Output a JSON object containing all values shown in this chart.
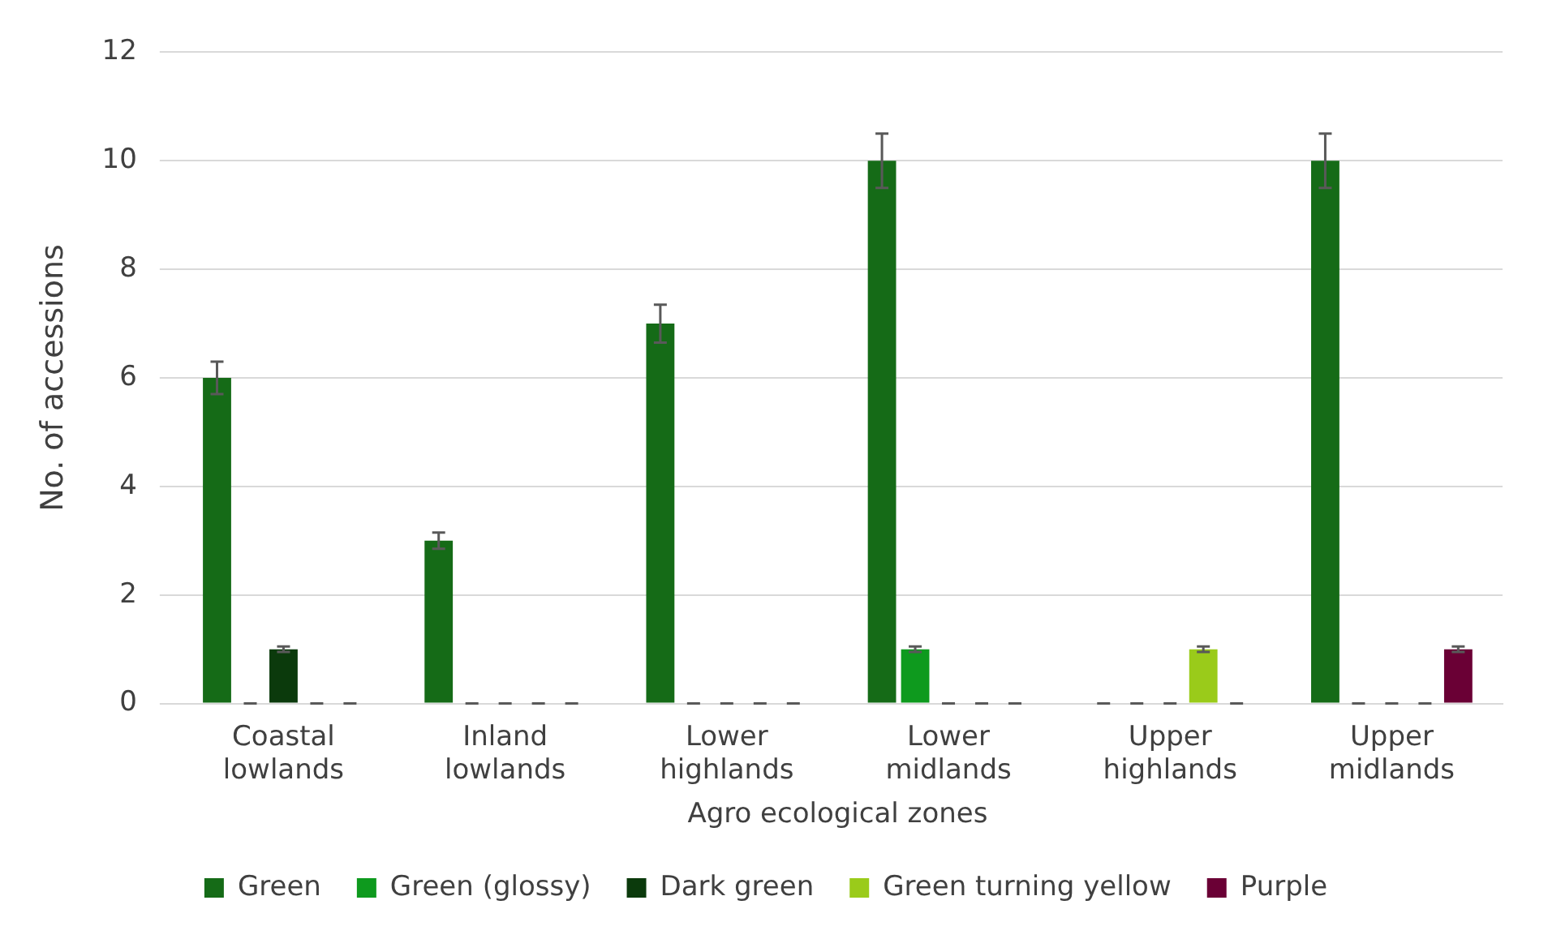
{
  "chart_data": {
    "type": "bar",
    "xlabel": "Agro ecological zones",
    "ylabel": "No. of accessions",
    "categories": [
      "Coastal lowlands",
      "Inland lowlands",
      "Lower highlands",
      "Lower midlands",
      "Upper highlands",
      "Upper midlands"
    ],
    "series": [
      {
        "name": "Green",
        "color": "#156b17",
        "values": [
          6,
          3,
          7,
          10,
          0,
          10
        ],
        "errors": [
          0.3,
          0.15,
          0.35,
          0.5,
          0,
          0.5
        ]
      },
      {
        "name": "Green (glossy)",
        "color": "#0e9a1e",
        "values": [
          0,
          0,
          0,
          1,
          0,
          0
        ],
        "errors": [
          0,
          0,
          0,
          0.05,
          0,
          0
        ]
      },
      {
        "name": "Dark green",
        "color": "#0b3a0c",
        "values": [
          1,
          0,
          0,
          0,
          0,
          0
        ],
        "errors": [
          0.05,
          0,
          0,
          0,
          0,
          0
        ]
      },
      {
        "name": "Green turning yellow",
        "color": "#9acb1a",
        "values": [
          0,
          0,
          0,
          0,
          1,
          0
        ],
        "errors": [
          0,
          0,
          0,
          0,
          0.05,
          0
        ]
      },
      {
        "name": "Purple",
        "color": "#6a0035",
        "values": [
          0,
          0,
          0,
          0,
          0,
          1
        ],
        "errors": [
          0,
          0,
          0,
          0,
          0,
          0.05
        ]
      }
    ],
    "ylim": [
      0,
      12
    ],
    "yticks": [
      0,
      2,
      4,
      6,
      8,
      10,
      12
    ],
    "grid": "y",
    "legend": "bottom"
  }
}
